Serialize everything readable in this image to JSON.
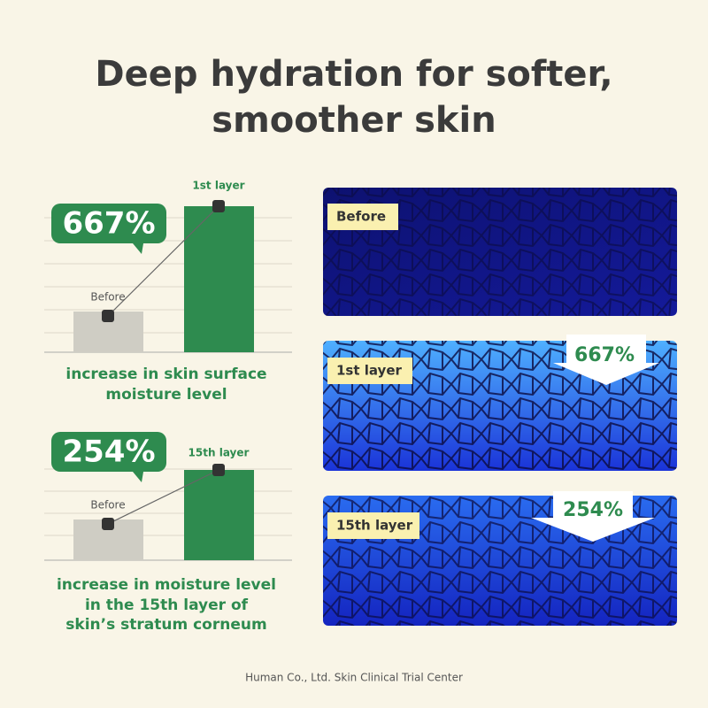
{
  "header": {
    "title_lines": [
      "Deep hydration for softer,",
      "smoother skin"
    ]
  },
  "panels": [
    {
      "badge": "667%",
      "before_label": "Before",
      "after_label": "1st layer",
      "caption_lines": [
        "increase in skin surface",
        "moisture level"
      ]
    },
    {
      "badge": "254%",
      "before_label": "Before",
      "after_label": "15th layer",
      "caption_lines": [
        "increase in moisture level",
        "in the 15th layer of",
        "skin’s stratum corneum"
      ]
    }
  ],
  "images": [
    {
      "label": "Before"
    },
    {
      "label": "1st layer",
      "callout": "667%"
    },
    {
      "label": "15th layer",
      "callout": "254%"
    }
  ],
  "footer": "Human Co., Ltd. Skin Clinical Trial Center"
}
